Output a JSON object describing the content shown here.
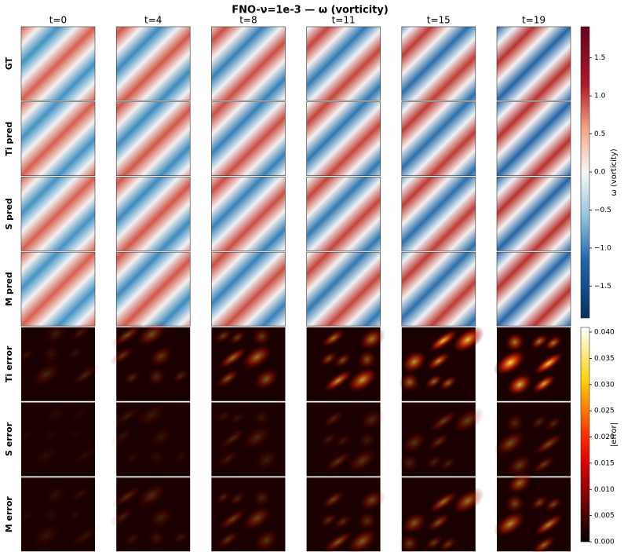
{
  "chart_data": {
    "type": "heatmap",
    "title": "FNO-ν=1e-3  —  ω (vorticity)",
    "columns": [
      "t=0",
      "t=4",
      "t=8",
      "t=11",
      "t=15",
      "t=19"
    ],
    "rows": [
      "GT",
      "Ti pred",
      "S pred",
      "M pred",
      "Ti error",
      "S error",
      "M error"
    ],
    "colorbars": [
      {
        "label": "ω (vorticity)",
        "ylim": [
          -1.92,
          1.91
        ],
        "yticks": [
          {
            "value": -1.5,
            "label": "−1.5"
          },
          {
            "value": -1.0,
            "label": "−1.0"
          },
          {
            "value": -0.5,
            "label": "−0.5"
          },
          {
            "value": 0,
            "label": "0.0"
          },
          0.5,
          {
            "value": 1.0,
            "label": "1.0"
          },
          1.5
        ]
      },
      {
        "label": "|error|",
        "ylim": [
          0,
          0.0409
        ],
        "yticks": [
          {
            "value": 0,
            "label": "0.000"
          },
          0.005,
          {
            "value": 0.01,
            "label": "0.010"
          },
          0.015,
          {
            "value": 0.02,
            "label": "0.020"
          },
          0.025,
          {
            "value": 0.03,
            "label": "0.030"
          },
          0.035,
          {
            "value": 0.04,
            "label": "0.040"
          }
        ]
      }
    ]
  }
}
